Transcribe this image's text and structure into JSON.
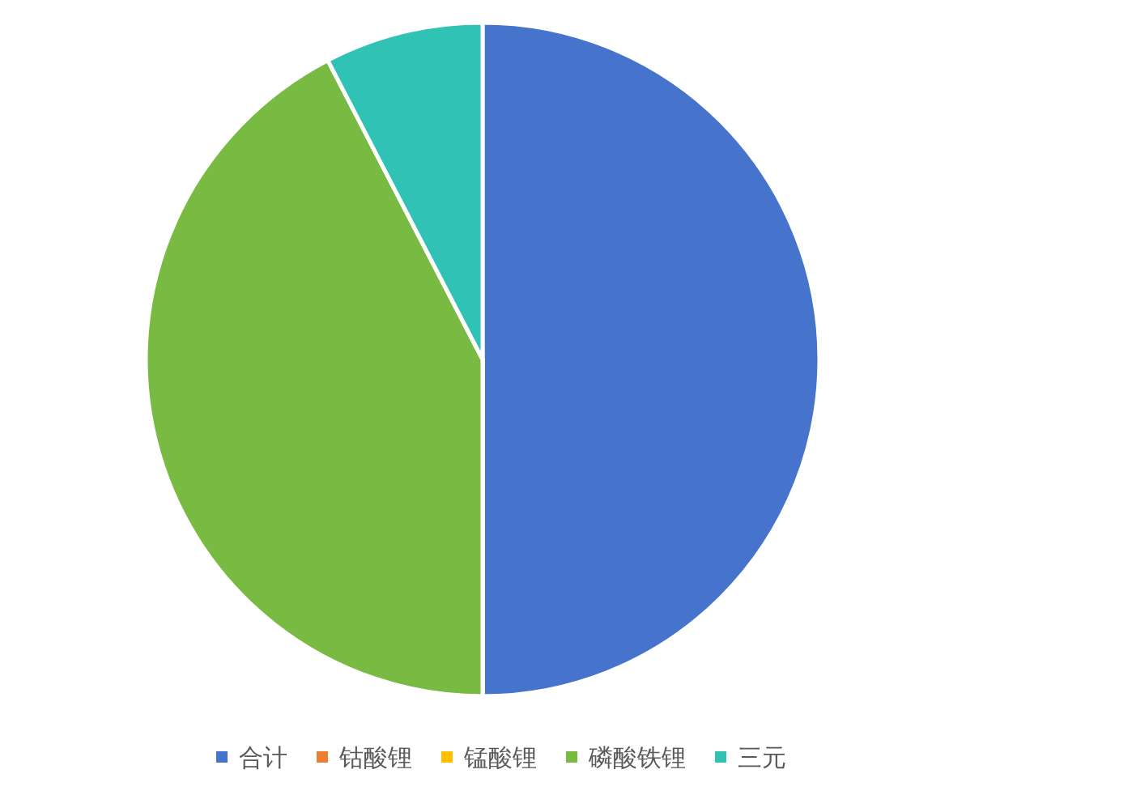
{
  "chart_data": {
    "type": "pie",
    "categories": [
      "合计",
      "钴酸锂",
      "锰酸锂",
      "磷酸铁锂",
      "三元"
    ],
    "values": [
      50,
      0,
      0,
      42.4,
      7.6
    ],
    "colors": [
      "#4674cd",
      "#ed7d31",
      "#ffc000",
      "#79bb42",
      "#30c3b5"
    ],
    "legend": "bottom"
  }
}
